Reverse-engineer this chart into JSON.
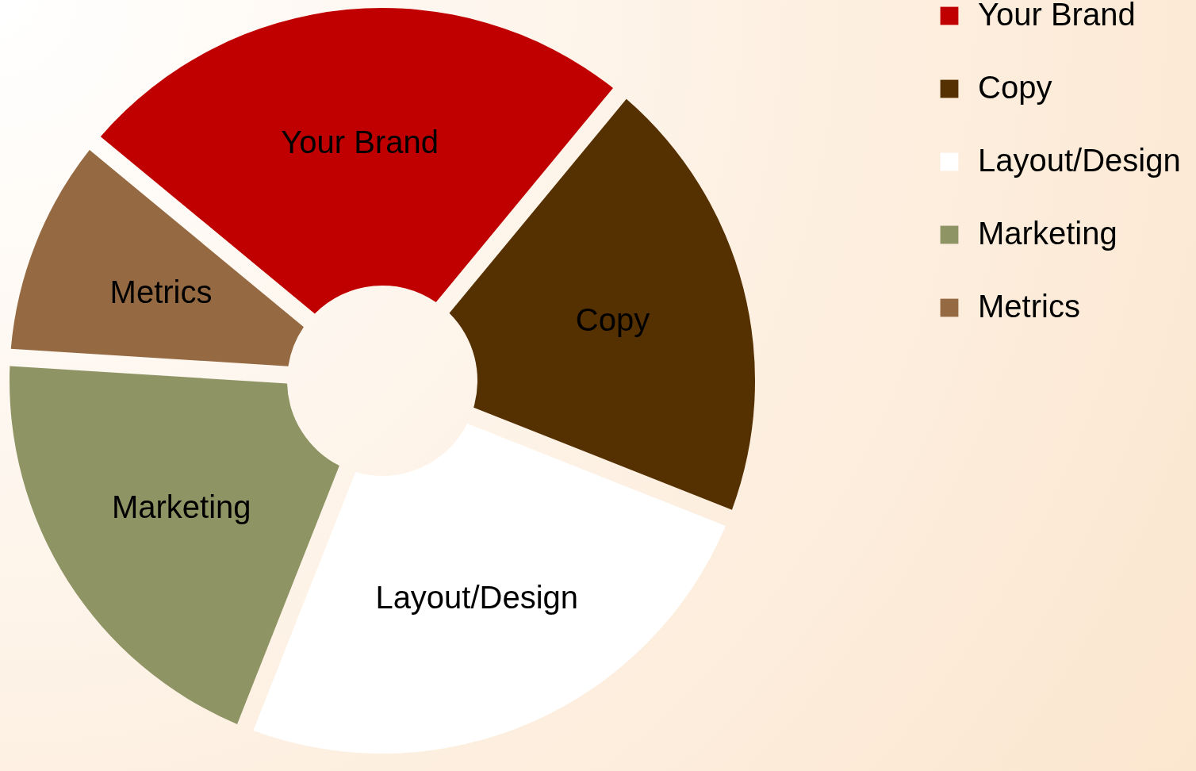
{
  "chart_data": {
    "type": "donut",
    "categories": [
      "Your Brand",
      "Copy",
      "Layout/Design",
      "Marketing",
      "Metrics"
    ],
    "values": [
      25,
      20,
      25,
      20,
      10
    ],
    "colors": [
      "#c00000",
      "#553000",
      "#ffffff",
      "#8f9465",
      "#956a43"
    ],
    "legend": "right"
  }
}
